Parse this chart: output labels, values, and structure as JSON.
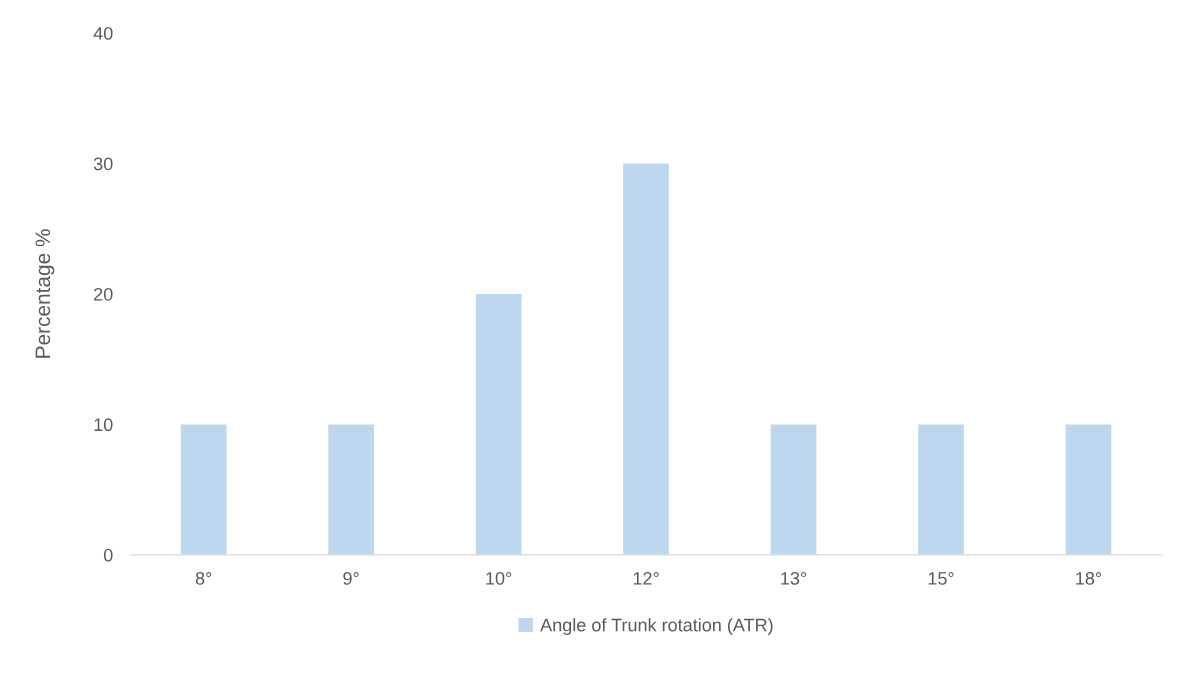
{
  "chart_data": {
    "type": "bar",
    "ylabel": "Percentage %",
    "categories": [
      "8°",
      "9°",
      "10°",
      "12°",
      "13°",
      "15°",
      "18°"
    ],
    "series": [
      {
        "name": "Angle of Trunk rotation (ATR)",
        "color": "#bdd7ee",
        "values": [
          10,
          10,
          20,
          30,
          10,
          10,
          10
        ]
      }
    ],
    "ylim": [
      0,
      40
    ],
    "yticks": [
      0,
      10,
      20,
      30,
      40
    ],
    "grid": false,
    "legend": "bottom"
  }
}
